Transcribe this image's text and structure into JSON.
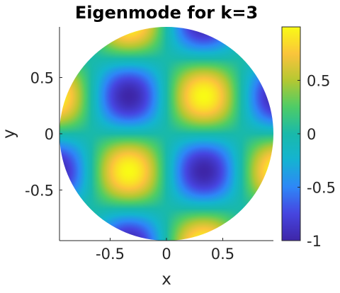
{
  "chart_data": {
    "type": "heatmap",
    "title": "Eigenmode for k=3",
    "xlabel": "x",
    "ylabel": "y",
    "xlim": [
      -0.95,
      0.95
    ],
    "ylim": [
      -0.95,
      0.95
    ],
    "domain": "unit disk",
    "field": "sin(3*pi*x/2) * sin(3*pi*y/2)",
    "x_ticks": [
      {
        "value": -0.5,
        "label": "-0.5"
      },
      {
        "value": 0,
        "label": "0"
      },
      {
        "value": 0.5,
        "label": "0.5"
      }
    ],
    "y_ticks": [
      {
        "value": -0.5,
        "label": "-0.5"
      },
      {
        "value": 0,
        "label": "0"
      },
      {
        "value": 0.5,
        "label": "0.5"
      }
    ],
    "colorbar": {
      "colormap": "parula",
      "range": [
        -1,
        1
      ],
      "ticks": [
        {
          "value": -1,
          "label": "-1"
        },
        {
          "value": -0.5,
          "label": "-0.5"
        },
        {
          "value": 0,
          "label": "0"
        },
        {
          "value": 0.5,
          "label": "0.5"
        }
      ]
    },
    "grid": false,
    "legend": "none"
  }
}
